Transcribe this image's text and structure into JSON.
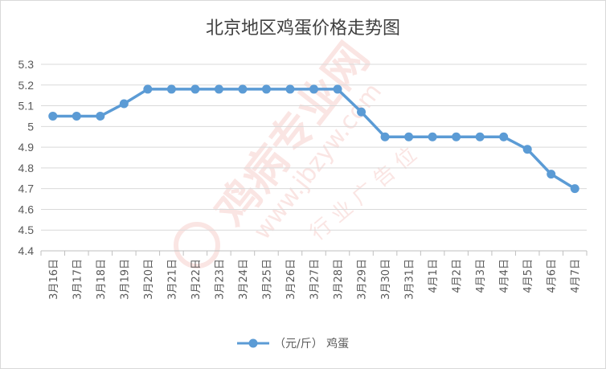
{
  "chart_data": {
    "type": "line",
    "title": "北京地区鸡蛋价格走势图",
    "categories": [
      "3月16日",
      "3月17日",
      "3月18日",
      "3月19日",
      "3月20日",
      "3月21日",
      "3月22日",
      "3月23日",
      "3月24日",
      "3月25日",
      "3月26日",
      "3月27日",
      "3月28日",
      "3月29日",
      "3月30日",
      "3月31日",
      "4月1日",
      "4月2日",
      "4月3日",
      "4月4日",
      "4月5日",
      "4月6日",
      "4月7日"
    ],
    "series": [
      {
        "name": "（元/斤） 鸡蛋",
        "values": [
          5.05,
          5.05,
          5.05,
          5.11,
          5.18,
          5.18,
          5.18,
          5.18,
          5.18,
          5.18,
          5.18,
          5.18,
          5.18,
          5.07,
          4.95,
          4.95,
          4.95,
          4.95,
          4.95,
          4.95,
          4.89,
          4.77,
          4.7
        ],
        "color": "#5b9bd5"
      }
    ],
    "ylim": [
      4.4,
      5.3
    ],
    "yticks": [
      "5.3",
      "5.2",
      "5.1",
      "5",
      "4.9",
      "4.8",
      "4.7",
      "4.6",
      "4.5",
      "4.4"
    ],
    "grid": true,
    "legend": "bottom"
  },
  "watermark": {
    "text_main": "鸡病专业网",
    "text_url": "www.jbzyw.com",
    "text_extra": "行 业 广 告 位"
  }
}
